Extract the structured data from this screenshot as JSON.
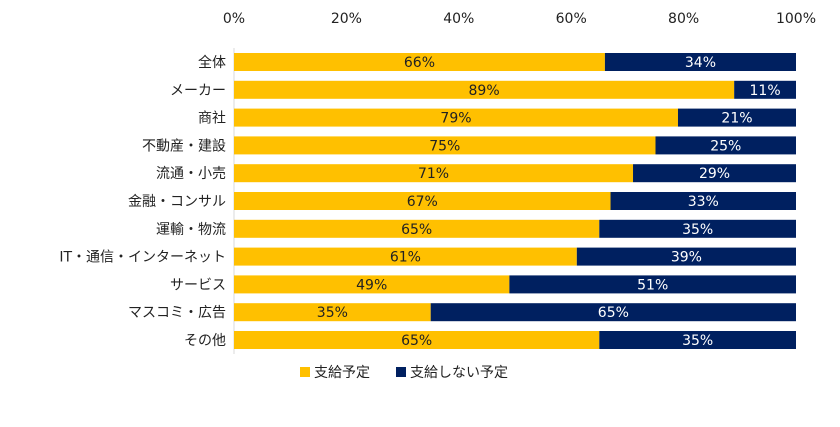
{
  "chart_data": {
    "type": "bar",
    "orientation": "horizontal",
    "stacked": true,
    "categories": [
      "全体",
      "メーカー",
      "商社",
      "不動産・建設",
      "流通・小売",
      "金融・コンサル",
      "運輸・物流",
      "IT・通信・インターネット",
      "サービス",
      "マスコミ・広告",
      "その他"
    ],
    "series": [
      {
        "name": "支給予定",
        "color": "#FFC000",
        "values": [
          66,
          89,
          79,
          75,
          71,
          67,
          65,
          61,
          49,
          35,
          65
        ]
      },
      {
        "name": "支給しない予定",
        "color": "#002060",
        "values": [
          34,
          11,
          21,
          25,
          29,
          33,
          35,
          39,
          51,
          65,
          35
        ]
      }
    ],
    "xlim": [
      0,
      100
    ],
    "x_ticks": [
      "0%",
      "20%",
      "40%",
      "60%",
      "80%",
      "100%"
    ],
    "x_tick_values": [
      0,
      20,
      40,
      60,
      80,
      100
    ],
    "value_suffix": "%",
    "grid": false,
    "legend_position": "bottom",
    "title": "",
    "xlabel": "",
    "ylabel": ""
  }
}
